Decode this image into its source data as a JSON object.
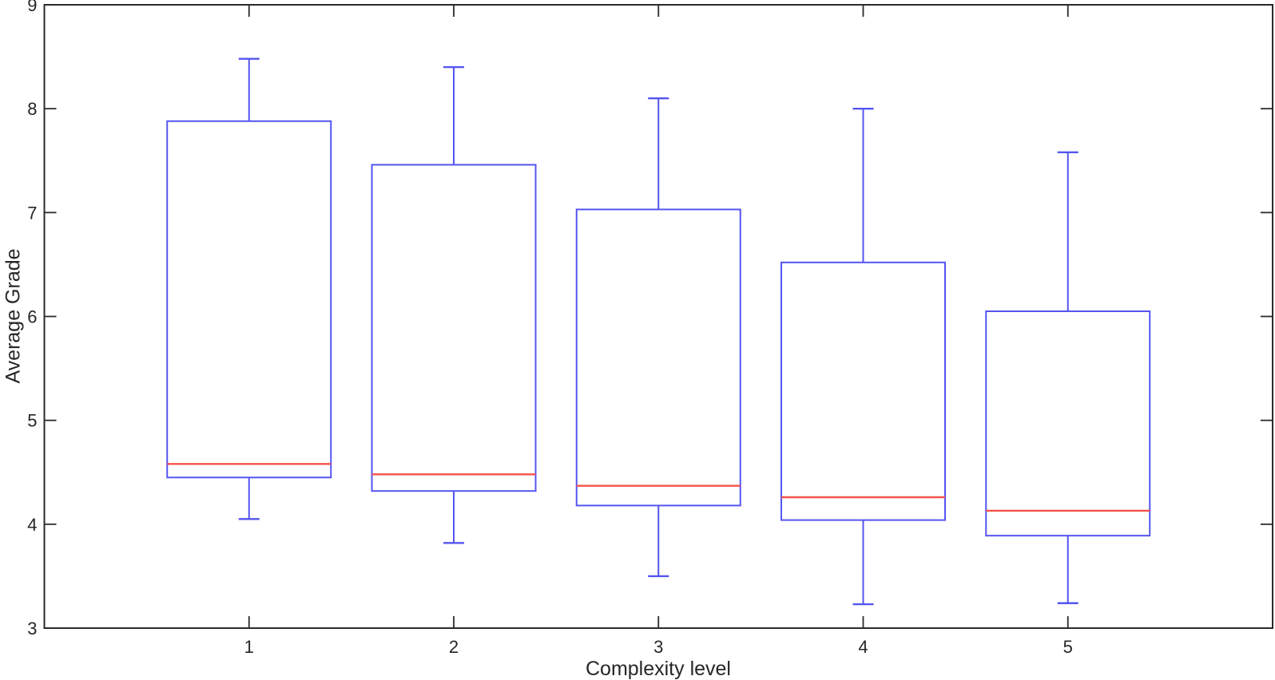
{
  "chart_data": {
    "type": "boxplot",
    "title": "",
    "xlabel": "Complexity level",
    "ylabel": "Average Grade",
    "ylim": [
      3,
      9
    ],
    "yticks": [
      3,
      4,
      5,
      6,
      7,
      8,
      9
    ],
    "categories": [
      "1",
      "2",
      "3",
      "4",
      "5"
    ],
    "grid": false,
    "legend": null,
    "boxes": [
      {
        "category": "1",
        "whisker_low": 4.05,
        "q1": 4.45,
        "median": 4.58,
        "q3": 7.88,
        "whisker_high": 8.48
      },
      {
        "category": "2",
        "whisker_low": 3.82,
        "q1": 4.32,
        "median": 4.48,
        "q3": 7.46,
        "whisker_high": 8.4
      },
      {
        "category": "3",
        "whisker_low": 3.5,
        "q1": 4.18,
        "median": 4.37,
        "q3": 7.03,
        "whisker_high": 8.1
      },
      {
        "category": "4",
        "whisker_low": 3.23,
        "q1": 4.04,
        "median": 4.26,
        "q3": 6.52,
        "whisker_high": 8.0
      },
      {
        "category": "5",
        "whisker_low": 3.24,
        "q1": 3.89,
        "median": 4.13,
        "q3": 6.05,
        "whisker_high": 7.58
      }
    ],
    "colors": {
      "box": "#5555f0",
      "median": "#f4524b",
      "axis": "#2b2b2b"
    }
  }
}
